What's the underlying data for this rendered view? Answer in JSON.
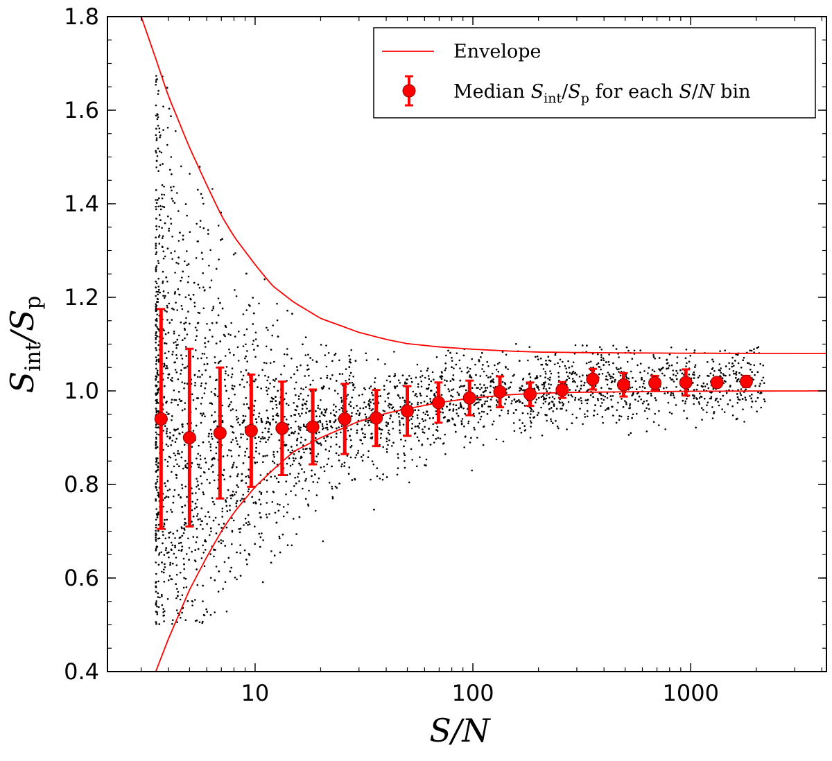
{
  "chart_data": {
    "type": "scatter",
    "xscale": "log",
    "xlim": [
      2.1,
      4200
    ],
    "ylim": [
      0.4,
      1.8
    ],
    "xticks": [
      10,
      100,
      1000
    ],
    "xtick_labels": [
      "10",
      "100",
      "1000"
    ],
    "yticks": [
      0.4,
      0.6,
      0.8,
      1.0,
      1.2,
      1.4,
      1.6,
      1.8
    ],
    "ytick_labels": [
      "0.4",
      "0.6",
      "0.8",
      "1.0",
      "1.2",
      "1.4",
      "1.6",
      "1.8"
    ],
    "grid": false,
    "legend_position": "top-right",
    "xlabel": "S/N",
    "ylabel": "S_int/S_p",
    "legend": [
      {
        "label": "Envelope",
        "series": "envelope"
      },
      {
        "label_parts": [
          "Median ",
          "S",
          "int",
          "/",
          "S",
          "p",
          " for each ",
          "S",
          "/",
          "N",
          " bin"
        ],
        "series": "medians"
      }
    ],
    "envelope": {
      "upper": {
        "x": [
          3.0,
          3.5,
          4,
          5,
          6,
          7,
          8,
          10,
          12,
          15,
          20,
          30,
          40,
          50,
          70,
          100,
          150,
          200,
          300,
          500,
          1000,
          2000,
          4200
        ],
        "y": [
          1.8,
          1.71,
          1.63,
          1.52,
          1.44,
          1.375,
          1.33,
          1.27,
          1.225,
          1.19,
          1.155,
          1.125,
          1.11,
          1.101,
          1.094,
          1.089,
          1.085,
          1.083,
          1.082,
          1.0812,
          1.0805,
          1.0802,
          1.08
        ]
      },
      "lower": {
        "x": [
          3.5,
          4,
          5,
          6,
          7,
          8,
          10,
          12,
          15,
          20,
          30,
          40,
          50,
          70,
          100,
          150,
          200,
          300,
          500,
          1000,
          2000,
          4200
        ],
        "y": [
          0.4,
          0.47,
          0.575,
          0.645,
          0.7,
          0.74,
          0.795,
          0.83,
          0.87,
          0.9,
          0.935,
          0.952,
          0.962,
          0.975,
          0.985,
          0.992,
          0.995,
          0.997,
          0.998,
          0.9992,
          0.9997,
          1.0
        ]
      },
      "color": "#ff0000"
    },
    "medians": {
      "x": [
        3.7,
        5.0,
        6.9,
        9.6,
        13.3,
        18.4,
        25.8,
        36.0,
        50.0,
        69.5,
        96.5,
        133,
        183,
        257,
        355,
        492,
        685,
        950,
        1320,
        1800
      ],
      "y": [
        0.94,
        0.9,
        0.91,
        0.915,
        0.92,
        0.923,
        0.94,
        0.942,
        0.957,
        0.975,
        0.985,
        0.998,
        0.993,
        1.002,
        1.025,
        1.013,
        1.017,
        1.018,
        1.018,
        1.02
      ],
      "yerr": [
        0.235,
        0.19,
        0.14,
        0.12,
        0.1,
        0.08,
        0.075,
        0.06,
        0.053,
        0.043,
        0.037,
        0.033,
        0.025,
        0.017,
        0.022,
        0.025,
        0.015,
        0.028,
        0.01,
        0.012
      ],
      "color": "#ff0000"
    },
    "scatter_points_shown": "approx. 4000 black dots spread between the envelope curves, densest near S/N 4-15 around ratio 0.8-1.0"
  }
}
